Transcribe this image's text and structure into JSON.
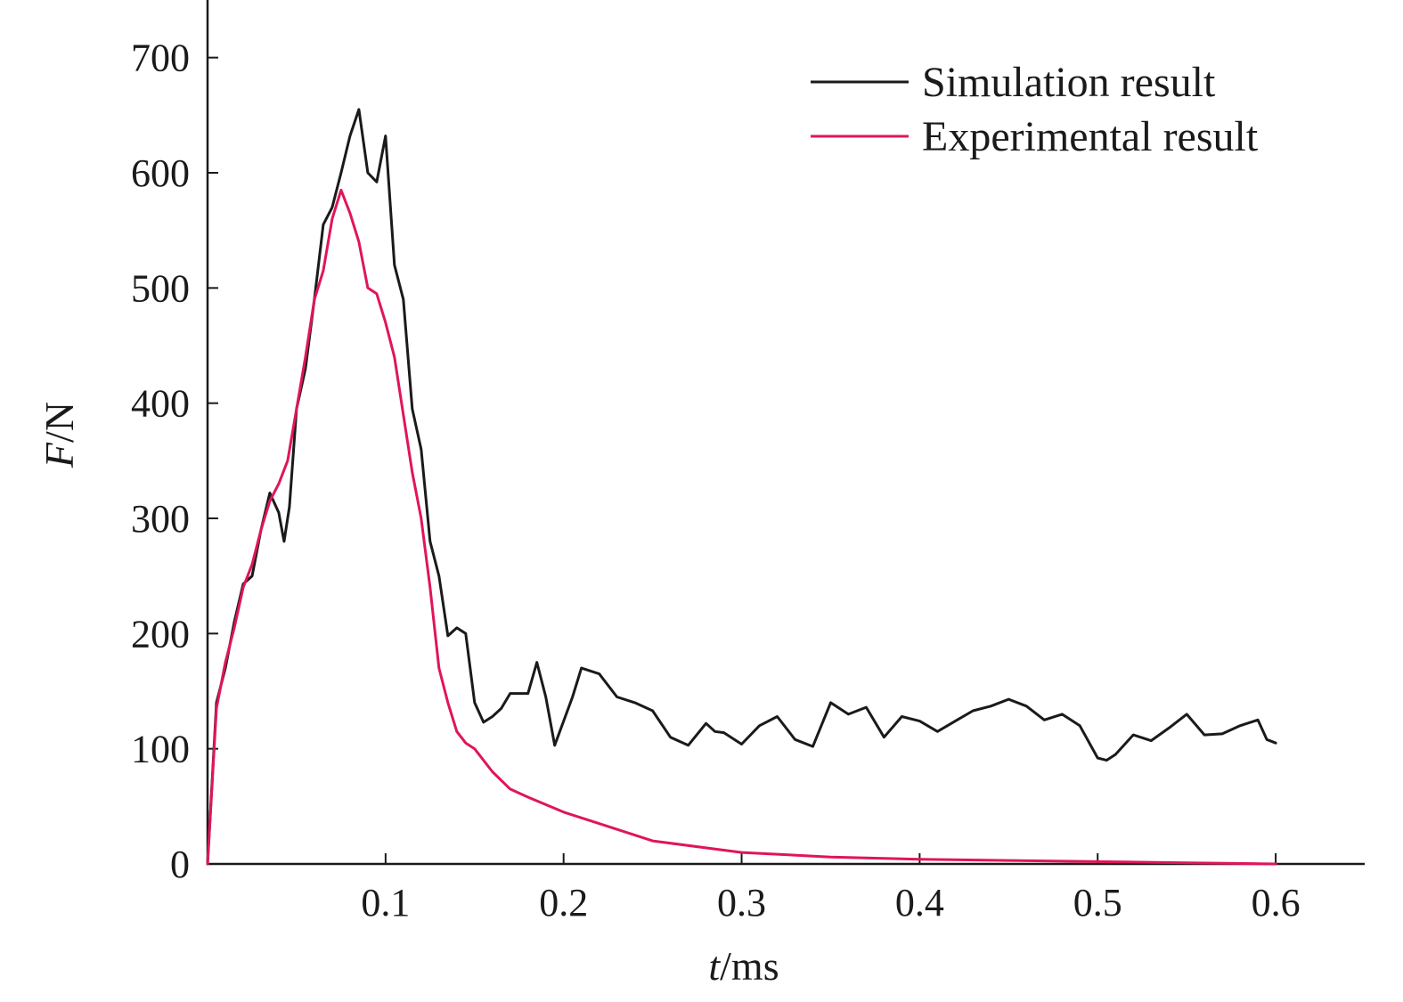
{
  "chart_data": {
    "type": "line",
    "xlabel_var": "t",
    "xlabel_unit": "/ms",
    "ylabel_var": "F",
    "ylabel_unit": "/N",
    "xlim": [
      0,
      0.65
    ],
    "ylim": [
      0,
      750
    ],
    "x_ticks": [
      0.1,
      0.2,
      0.3,
      0.4,
      0.5,
      0.6
    ],
    "x_tick_labels": [
      "0.1",
      "0.2",
      "0.3",
      "0.4",
      "0.5",
      "0.6"
    ],
    "y_ticks": [
      0,
      100,
      200,
      300,
      400,
      500,
      600,
      700
    ],
    "y_tick_labels": [
      "0",
      "100",
      "200",
      "300",
      "400",
      "500",
      "600",
      "700"
    ],
    "grid": false,
    "legend_position": "top-right",
    "series": [
      {
        "name": "Simulation result",
        "color": "#1a1a1a",
        "x": [
          0,
          0.005,
          0.01,
          0.015,
          0.02,
          0.025,
          0.03,
          0.035,
          0.04,
          0.043,
          0.046,
          0.05,
          0.055,
          0.06,
          0.065,
          0.07,
          0.075,
          0.08,
          0.085,
          0.09,
          0.095,
          0.1,
          0.105,
          0.11,
          0.115,
          0.12,
          0.125,
          0.13,
          0.135,
          0.14,
          0.145,
          0.15,
          0.155,
          0.16,
          0.165,
          0.17,
          0.18,
          0.185,
          0.19,
          0.195,
          0.205,
          0.21,
          0.22,
          0.23,
          0.24,
          0.25,
          0.26,
          0.27,
          0.28,
          0.285,
          0.29,
          0.3,
          0.31,
          0.32,
          0.33,
          0.34,
          0.35,
          0.36,
          0.37,
          0.38,
          0.39,
          0.4,
          0.41,
          0.42,
          0.43,
          0.44,
          0.45,
          0.46,
          0.47,
          0.48,
          0.49,
          0.5,
          0.505,
          0.51,
          0.52,
          0.53,
          0.54,
          0.55,
          0.56,
          0.57,
          0.58,
          0.59,
          0.595,
          0.6
        ],
        "values": [
          0,
          140,
          170,
          210,
          243,
          250,
          290,
          322,
          305,
          280,
          310,
          395,
          430,
          490,
          555,
          570,
          600,
          632,
          655,
          600,
          592,
          632,
          520,
          490,
          395,
          360,
          280,
          250,
          198,
          205,
          200,
          140,
          123,
          128,
          135,
          148,
          148,
          175,
          145,
          103,
          145,
          170,
          165,
          145,
          140,
          133,
          110,
          103,
          122,
          115,
          114,
          104,
          120,
          128,
          108,
          102,
          140,
          130,
          136,
          110,
          128,
          124,
          115,
          124,
          133,
          137,
          143,
          137,
          125,
          130,
          120,
          92,
          90,
          95,
          112,
          107,
          118,
          130,
          112,
          113,
          120,
          125,
          108,
          105
        ]
      },
      {
        "name": "Experimental result",
        "color": "#e0155a",
        "x": [
          0,
          0.005,
          0.01,
          0.015,
          0.02,
          0.025,
          0.03,
          0.035,
          0.04,
          0.045,
          0.05,
          0.055,
          0.06,
          0.065,
          0.07,
          0.075,
          0.08,
          0.085,
          0.09,
          0.095,
          0.1,
          0.105,
          0.11,
          0.115,
          0.12,
          0.125,
          0.13,
          0.135,
          0.14,
          0.145,
          0.15,
          0.16,
          0.17,
          0.18,
          0.2,
          0.22,
          0.25,
          0.3,
          0.35,
          0.4,
          0.45,
          0.5,
          0.55,
          0.6
        ],
        "values": [
          0,
          135,
          175,
          205,
          240,
          260,
          290,
          315,
          330,
          350,
          395,
          440,
          490,
          515,
          560,
          585,
          565,
          540,
          500,
          495,
          470,
          440,
          390,
          340,
          300,
          240,
          170,
          140,
          115,
          105,
          100,
          80,
          65,
          58,
          45,
          35,
          20,
          10,
          6,
          4,
          3,
          2,
          1,
          0
        ]
      }
    ]
  }
}
